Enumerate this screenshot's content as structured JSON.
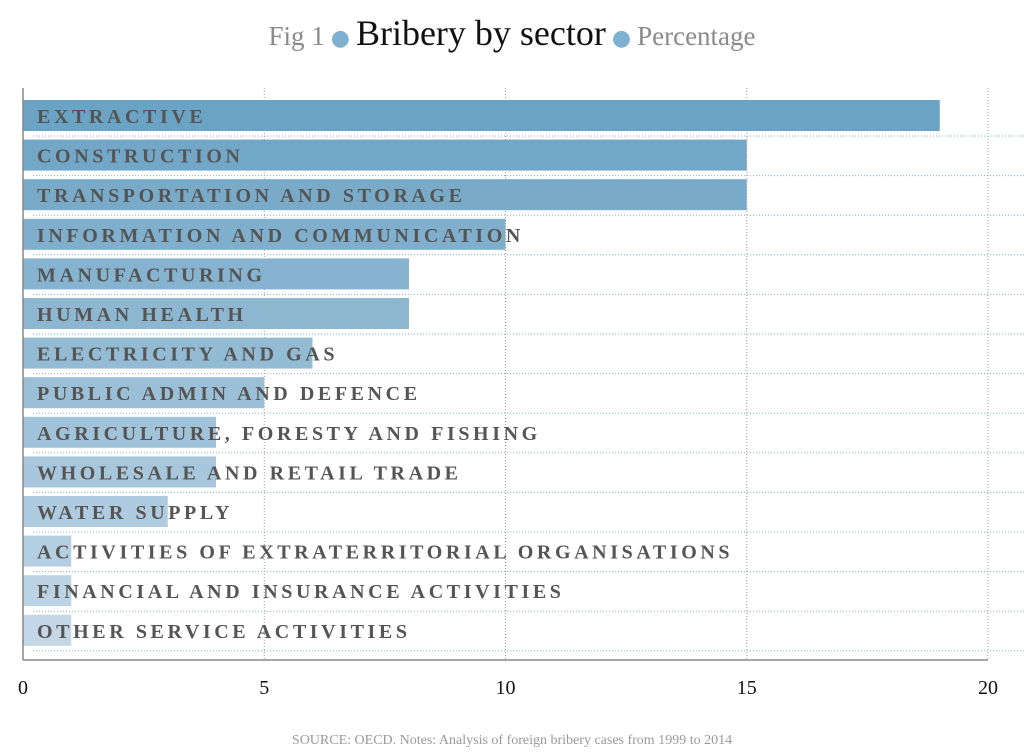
{
  "chart_data": {
    "type": "bar",
    "orientation": "horizontal",
    "title_prefix": "Fig 1",
    "title": "Bribery by sector",
    "subtitle": "Percentage",
    "categories": [
      "EXTRACTIVE",
      "CONSTRUCTION",
      "TRANSPORTATION AND STORAGE",
      "INFORMATION AND COMMUNICATION",
      "MANUFACTURING",
      "HUMAN HEALTH",
      "ELECTRICITY AND GAS",
      "PUBLIC ADMIN AND DEFENCE",
      "AGRICULTURE, FORESTY AND FISHING",
      "WHOLESALE AND RETAIL TRADE",
      "WATER SUPPLY",
      "ACTIVITIES OF EXTRATERRITORIAL ORGANISATIONS",
      "FINANCIAL AND INSURANCE ACTIVITIES",
      "OTHER SERVICE ACTIVITIES"
    ],
    "values": [
      19,
      15,
      15,
      10,
      8,
      8,
      6,
      5,
      4,
      4,
      3,
      1,
      1,
      1
    ],
    "xlim": [
      0,
      20
    ],
    "xticks": [
      0,
      5,
      10,
      15,
      20
    ],
    "grid": true,
    "colors": {
      "bar_dark": "#6ba3c4",
      "bar_light": "#c3d7e7",
      "dot": "#7fb0cf"
    },
    "source": "SOURCE: OECD. Notes: Analysis of foreign bribery cases from 1999 to 2014"
  }
}
